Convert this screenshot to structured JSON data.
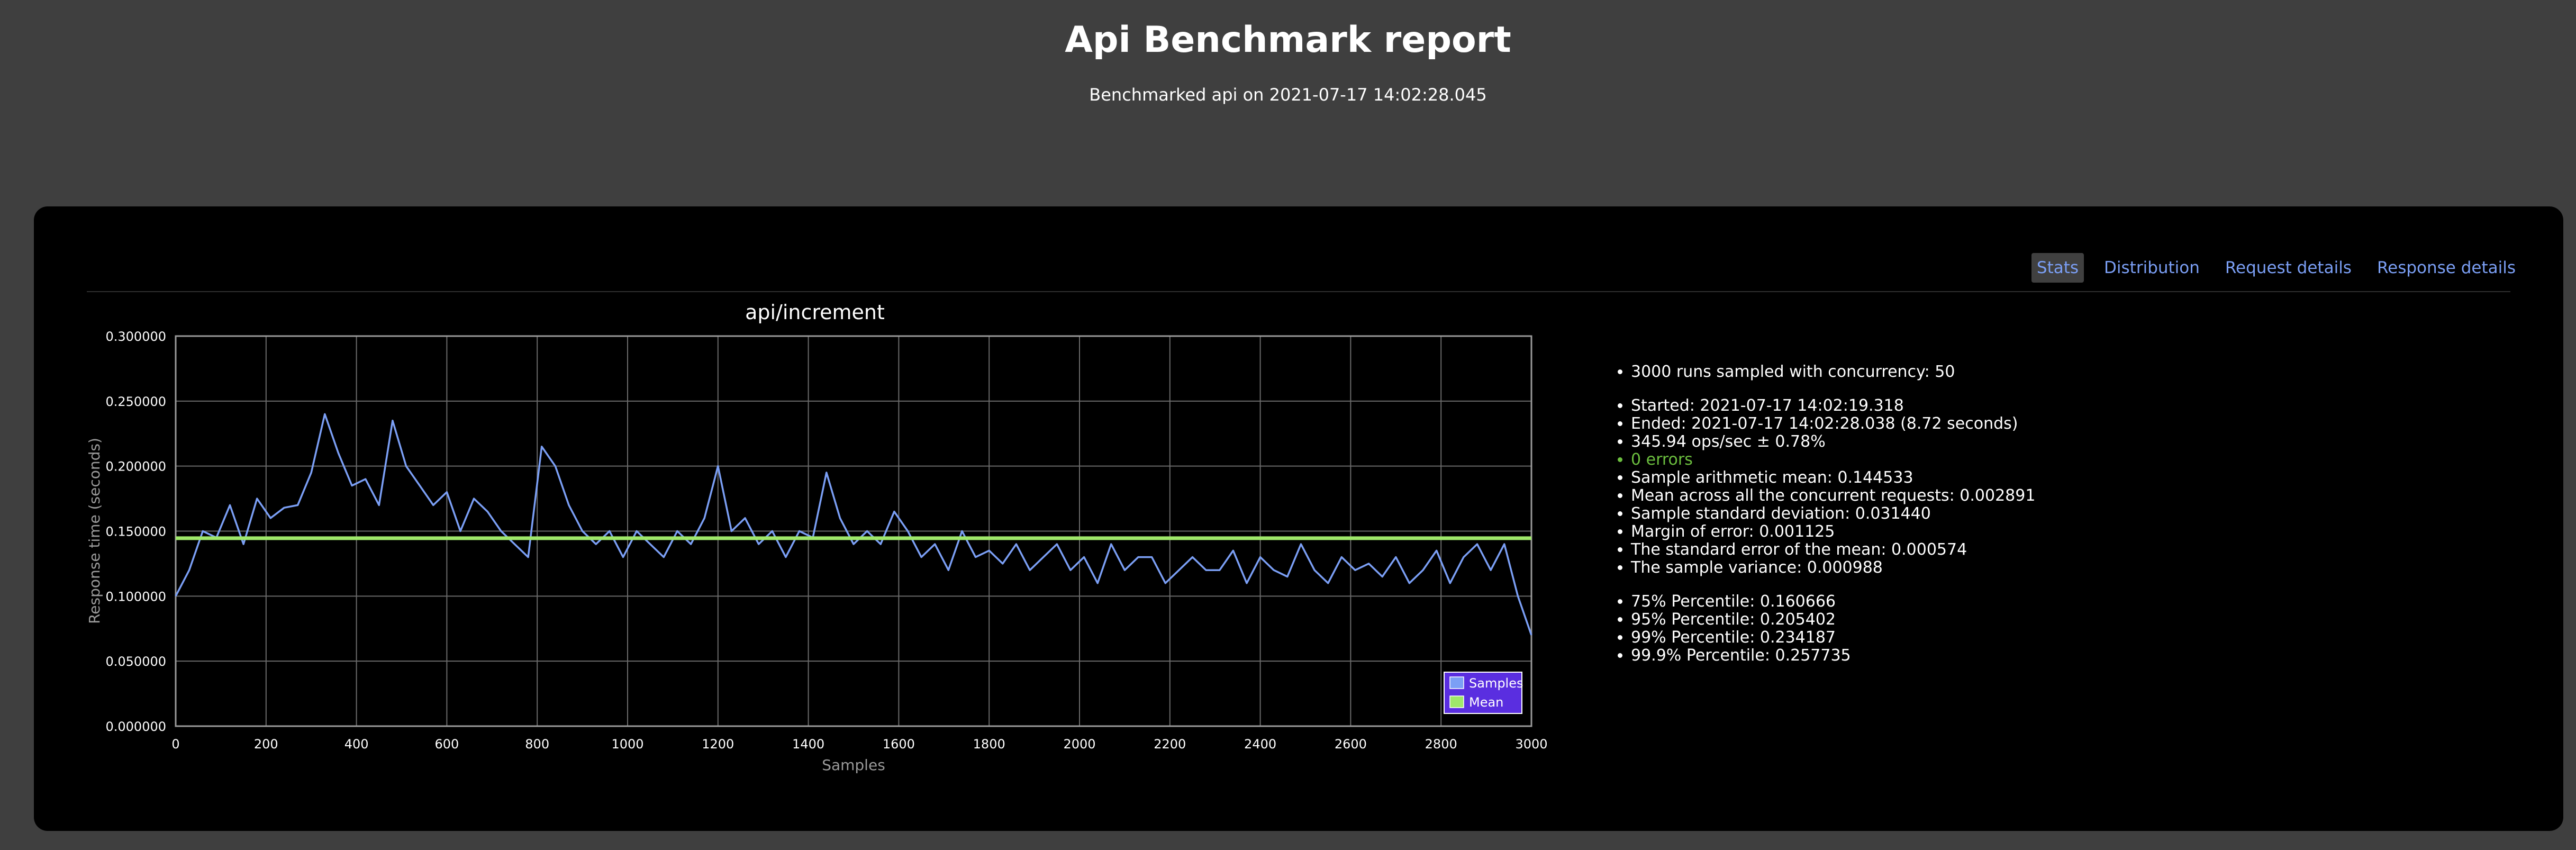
{
  "header": {
    "title": "Api Benchmark report",
    "subtitle": "Benchmarked api on 2021-07-17 14:02:28.045"
  },
  "tabs": [
    {
      "label": "Stats",
      "active": true
    },
    {
      "label": "Distribution",
      "active": false
    },
    {
      "label": "Request details",
      "active": false
    },
    {
      "label": "Response details",
      "active": false
    }
  ],
  "stats": {
    "group1": [
      "3000 runs sampled with concurrency: 50"
    ],
    "group2": [
      "Started: 2021-07-17 14:02:19.318",
      "Ended: 2021-07-17 14:02:28.038 (8.72 seconds)",
      "345.94 ops/sec ± 0.78%",
      "0 errors",
      "Sample arithmetic mean: 0.144533",
      "Mean across all the concurrent requests: 0.002891",
      "Sample standard deviation: 0.031440",
      "Margin of error: 0.001125",
      "The standard error of the mean: 0.000574",
      "The sample variance: 0.000988"
    ],
    "group3": [
      "75% Percentile: 0.160666",
      "95% Percentile: 0.205402",
      "99% Percentile: 0.234187",
      "99.9% Percentile: 0.257735"
    ]
  },
  "colors": {
    "samples": "#7b9ff5",
    "mean": "#9fe86a",
    "errors_ok": "#6cbf3f",
    "tab_link": "#7b9ff5",
    "legend_bg": "#5a2ee0"
  },
  "chart_data": {
    "type": "line",
    "title": "api/increment",
    "xlabel": "Samples",
    "ylabel": "Response time (seconds)",
    "xlim": [
      0,
      3000
    ],
    "ylim": [
      0,
      0.3
    ],
    "x_ticks": [
      "0",
      "200",
      "400",
      "600",
      "800",
      "1000",
      "1200",
      "1400",
      "1600",
      "1800",
      "2000",
      "2200",
      "2400",
      "2600",
      "2800",
      "3000"
    ],
    "y_ticks": [
      "0.000000",
      "0.050000",
      "0.100000",
      "0.150000",
      "0.200000",
      "0.250000",
      "0.300000"
    ],
    "grid": true,
    "legend_position": "bottom-right",
    "series": [
      {
        "name": "Samples",
        "x": [
          0,
          30,
          60,
          90,
          120,
          150,
          180,
          210,
          240,
          270,
          300,
          330,
          360,
          390,
          420,
          450,
          480,
          510,
          540,
          570,
          600,
          630,
          660,
          690,
          720,
          750,
          780,
          810,
          840,
          870,
          900,
          930,
          960,
          990,
          1020,
          1050,
          1080,
          1110,
          1140,
          1170,
          1200,
          1230,
          1260,
          1290,
          1320,
          1350,
          1380,
          1410,
          1440,
          1470,
          1500,
          1530,
          1560,
          1590,
          1620,
          1650,
          1680,
          1710,
          1740,
          1770,
          1800,
          1830,
          1860,
          1890,
          1920,
          1950,
          1980,
          2010,
          2040,
          2070,
          2100,
          2130,
          2160,
          2190,
          2220,
          2250,
          2280,
          2310,
          2340,
          2370,
          2400,
          2430,
          2460,
          2490,
          2520,
          2550,
          2580,
          2610,
          2640,
          2670,
          2700,
          2730,
          2760,
          2790,
          2820,
          2850,
          2880,
          2910,
          2940,
          2970,
          3000
        ],
        "values": [
          0.1,
          0.12,
          0.15,
          0.145,
          0.17,
          0.14,
          0.175,
          0.16,
          0.168,
          0.17,
          0.195,
          0.24,
          0.21,
          0.185,
          0.19,
          0.17,
          0.235,
          0.2,
          0.185,
          0.17,
          0.18,
          0.15,
          0.175,
          0.165,
          0.15,
          0.14,
          0.13,
          0.215,
          0.2,
          0.17,
          0.15,
          0.14,
          0.15,
          0.13,
          0.15,
          0.14,
          0.13,
          0.15,
          0.14,
          0.16,
          0.2,
          0.15,
          0.16,
          0.14,
          0.15,
          0.13,
          0.15,
          0.145,
          0.195,
          0.16,
          0.14,
          0.15,
          0.14,
          0.165,
          0.15,
          0.13,
          0.14,
          0.12,
          0.15,
          0.13,
          0.135,
          0.125,
          0.14,
          0.12,
          0.13,
          0.14,
          0.12,
          0.13,
          0.11,
          0.14,
          0.12,
          0.13,
          0.13,
          0.11,
          0.12,
          0.13,
          0.12,
          0.12,
          0.135,
          0.11,
          0.13,
          0.12,
          0.115,
          0.14,
          0.12,
          0.11,
          0.13,
          0.12,
          0.125,
          0.115,
          0.13,
          0.11,
          0.12,
          0.135,
          0.11,
          0.13,
          0.14,
          0.12,
          0.14,
          0.1,
          0.07
        ]
      },
      {
        "name": "Mean",
        "y": 0.144533
      }
    ]
  }
}
